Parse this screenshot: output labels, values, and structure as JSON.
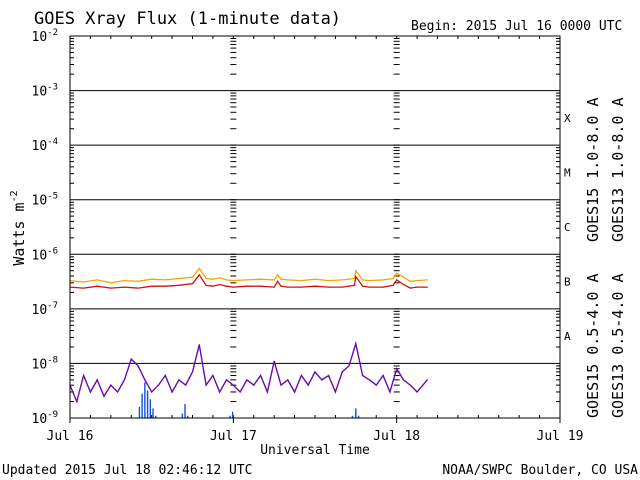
{
  "title": "GOES Xray Flux (1-minute data)",
  "begin": "Begin:  2015 Jul 16 0000 UTC",
  "updated": "Updated 2015 Jul 18 02:46:12 UTC",
  "credit": "NOAA/SWPC Boulder, CO USA",
  "colors": {
    "goes15_long": "#d01010",
    "goes13_long": "#f0a800",
    "goes15_short": "#1050e0",
    "goes13_short": "#6a0ab0"
  },
  "chart_data": {
    "type": "line",
    "title": "GOES Xray Flux (1-minute data)",
    "xlabel": "Universal Time",
    "ylabel": "Watts m",
    "ylabel_sup": "-2",
    "xlim": [
      0,
      72
    ],
    "x_unit": "hours since 2015 Jul 16 0000 UTC",
    "ylim": [
      1e-09,
      0.01
    ],
    "yscale": "log",
    "x_ticks": [
      {
        "x": 0,
        "label": "Jul 16"
      },
      {
        "x": 24,
        "label": "Jul 17"
      },
      {
        "x": 48,
        "label": "Jul 18"
      },
      {
        "x": 72,
        "label": "Jul 19"
      }
    ],
    "y_ticks": [
      {
        "exp": -2,
        "base": "10",
        "sup": "-2"
      },
      {
        "exp": -3,
        "base": "10",
        "sup": "-3"
      },
      {
        "exp": -4,
        "base": "10",
        "sup": "-4"
      },
      {
        "exp": -5,
        "base": "10",
        "sup": "-5"
      },
      {
        "exp": -6,
        "base": "10",
        "sup": "-6"
      },
      {
        "exp": -7,
        "base": "10",
        "sup": "-7"
      },
      {
        "exp": -8,
        "base": "10",
        "sup": "-8"
      },
      {
        "exp": -9,
        "base": "10",
        "sup": "-9"
      }
    ],
    "flare_classes": [
      {
        "label": "X",
        "exp": -3.5
      },
      {
        "label": "M",
        "exp": -4.5
      },
      {
        "label": "C",
        "exp": -5.5
      },
      {
        "label": "B",
        "exp": -6.5
      },
      {
        "label": "A",
        "exp": -7.5
      }
    ],
    "legend": [
      {
        "label": "GOES15 1.0-8.0 A",
        "series": "goes15_long"
      },
      {
        "label": "GOES13 1.0-8.0 A",
        "series": "goes13_long"
      },
      {
        "label": "GOES15 0.5-4.0 A",
        "series": "goes15_short"
      },
      {
        "label": "GOES13 0.5-4.0 A",
        "series": "goes13_short"
      }
    ],
    "series": [
      {
        "name": "GOES13 1.0-8.0 A",
        "key": "goes13_long",
        "x": [
          0,
          2,
          4,
          6,
          8,
          10,
          12,
          14,
          16,
          18,
          19,
          20,
          21,
          22,
          23,
          24,
          26,
          28,
          30,
          30.5,
          31,
          32,
          34,
          36,
          38,
          40,
          41.8,
          42,
          43,
          44,
          46,
          47.5,
          48,
          49,
          50,
          51,
          52.5
        ],
        "y": [
          3.3e-07,
          3.1e-07,
          3.4e-07,
          3e-07,
          3.3e-07,
          3.2e-07,
          3.5e-07,
          3.4e-07,
          3.6e-07,
          3.8e-07,
          5.5e-07,
          3.6e-07,
          3.5e-07,
          3.7e-07,
          3.4e-07,
          3.3e-07,
          3.4e-07,
          3.5e-07,
          3.4e-07,
          4.2e-07,
          3.5e-07,
          3.4e-07,
          3.3e-07,
          3.5e-07,
          3.3e-07,
          3.4e-07,
          3.6e-07,
          5e-07,
          3.4e-07,
          3.3e-07,
          3.4e-07,
          3.6e-07,
          4.5e-07,
          3.8e-07,
          3.2e-07,
          3.3e-07,
          3.4e-07
        ]
      },
      {
        "name": "GOES15 1.0-8.0 A",
        "key": "goes15_long",
        "x": [
          0,
          2,
          4,
          6,
          8,
          10,
          12,
          14,
          16,
          18,
          19,
          20,
          21,
          22,
          23,
          24,
          26,
          28,
          30,
          30.5,
          31,
          32,
          34,
          36,
          38,
          40,
          41.8,
          42,
          43,
          44,
          46,
          47.5,
          48,
          49,
          50,
          51,
          52.5
        ],
        "y": [
          2.5e-07,
          2.4e-07,
          2.6e-07,
          2.4e-07,
          2.5e-07,
          2.4e-07,
          2.6e-07,
          2.6e-07,
          2.7e-07,
          2.9e-07,
          4.2e-07,
          2.7e-07,
          2.6e-07,
          2.8e-07,
          2.6e-07,
          2.5e-07,
          2.6e-07,
          2.6e-07,
          2.5e-07,
          3.2e-07,
          2.6e-07,
          2.5e-07,
          2.5e-07,
          2.6e-07,
          2.5e-07,
          2.5e-07,
          2.7e-07,
          3.9e-07,
          2.6e-07,
          2.5e-07,
          2.5e-07,
          2.7e-07,
          3.4e-07,
          2.8e-07,
          2.4e-07,
          2.5e-07,
          2.5e-07
        ]
      },
      {
        "name": "GOES13 0.5-4.0 A",
        "key": "goes13_short",
        "x": [
          0,
          1,
          2,
          3,
          4,
          5,
          6,
          7,
          8,
          9,
          10,
          11,
          12,
          13,
          14,
          15,
          16,
          17,
          18,
          19,
          20,
          21,
          22,
          23,
          24,
          25,
          26,
          27,
          28,
          29,
          30,
          31,
          32,
          33,
          34,
          35,
          36,
          37,
          38,
          39,
          40,
          41,
          42,
          43,
          44,
          45,
          46,
          47,
          48,
          49,
          50,
          51,
          52.5
        ],
        "y": [
          4e-09,
          2e-09,
          6e-09,
          3e-09,
          5e-09,
          2.5e-09,
          4e-09,
          3e-09,
          5e-09,
          1.2e-08,
          9e-09,
          5e-09,
          3e-09,
          4e-09,
          6e-09,
          3e-09,
          5e-09,
          4e-09,
          7e-09,
          2.2e-08,
          4e-09,
          6e-09,
          3e-09,
          5e-09,
          4e-09,
          3e-09,
          5e-09,
          4e-09,
          6e-09,
          3e-09,
          1.1e-08,
          4e-09,
          5e-09,
          3e-09,
          6e-09,
          4e-09,
          7e-09,
          5e-09,
          6e-09,
          3e-09,
          7e-09,
          9e-09,
          2.3e-08,
          6e-09,
          5e-09,
          4e-09,
          6e-09,
          3e-09,
          8e-09,
          5e-09,
          4e-09,
          3e-09,
          5e-09
        ]
      },
      {
        "name": "GOES15 0.5-4.0 A",
        "key": "goes15_short",
        "x": [
          10.2,
          10.6,
          11,
          11.4,
          11.8,
          12.2,
          12.6,
          16.5,
          16.9,
          17.3,
          23.5,
          23.9,
          41.5,
          42,
          42.4
        ],
        "y": [
          1.6e-09,
          2.8e-09,
          4.5e-09,
          3.2e-09,
          2.2e-09,
          1.5e-09,
          1.1e-09,
          1.2e-09,
          1.8e-09,
          1.1e-09,
          1.1e-09,
          1.3e-09,
          1.1e-09,
          1.5e-09,
          1.1e-09
        ]
      }
    ]
  }
}
